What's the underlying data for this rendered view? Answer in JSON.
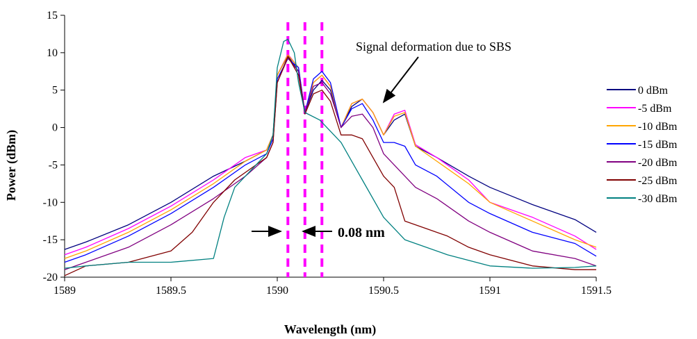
{
  "chart_data": {
    "type": "line",
    "title": "",
    "xlabel": "Wavelength (nm)",
    "ylabel": "Power (dBm)",
    "xlim": [
      1589,
      1591.5
    ],
    "ylim": [
      -20,
      15
    ],
    "x_ticks": [
      "1589",
      "1589.5",
      "1590",
      "1590.5",
      "1591",
      "1591.5"
    ],
    "y_ticks": [
      "-20",
      "-15",
      "-10",
      "-5",
      "0",
      "5",
      "10",
      "15"
    ],
    "grid": false,
    "legend": "right",
    "annotations": [
      {
        "text": "Signal deformation due to SBS",
        "arrow_to": [
          1590.48,
          1.0
        ]
      },
      {
        "text": "0.08 nm"
      }
    ],
    "markers": {
      "dashed_lines_x": [
        1590.05,
        1590.13,
        1590.21
      ],
      "color": "#ff00ff"
    },
    "series": [
      {
        "name": "0 dBm",
        "color": "#000080",
        "x": [
          1589,
          1589.1,
          1589.3,
          1589.5,
          1589.7,
          1589.85,
          1589.95,
          1589.98,
          1590.0,
          1590.05,
          1590.1,
          1590.13,
          1590.17,
          1590.21,
          1590.25,
          1590.3,
          1590.35,
          1590.4,
          1590.45,
          1590.5,
          1590.55,
          1590.6,
          1590.65,
          1590.75,
          1590.9,
          1591.0,
          1591.2,
          1591.4,
          1591.5
        ],
        "y": [
          -16.3,
          -15.3,
          -13.0,
          -10.0,
          -6.5,
          -4.5,
          -3.0,
          -1.0,
          7.0,
          9.6,
          7.5,
          2.0,
          5.0,
          6.3,
          5.0,
          0.0,
          2.8,
          3.8,
          2.0,
          -1.0,
          1.0,
          1.8,
          -2.5,
          -4.0,
          -6.5,
          -8.0,
          -10.3,
          -12.3,
          -14.0
        ]
      },
      {
        "name": "-5 dBm",
        "color": "#ff00ff",
        "x": [
          1589,
          1589.1,
          1589.3,
          1589.5,
          1589.7,
          1589.85,
          1589.95,
          1589.98,
          1590.0,
          1590.05,
          1590.1,
          1590.13,
          1590.17,
          1590.21,
          1590.25,
          1590.3,
          1590.35,
          1590.4,
          1590.45,
          1590.5,
          1590.55,
          1590.6,
          1590.65,
          1590.75,
          1590.9,
          1591.0,
          1591.2,
          1591.4,
          1591.5
        ],
        "y": [
          -17.0,
          -16.0,
          -13.5,
          -10.5,
          -7.0,
          -4.0,
          -3.0,
          -1.0,
          7.0,
          9.8,
          8.0,
          2.0,
          6.0,
          7.0,
          5.5,
          0.0,
          3.2,
          3.8,
          2.0,
          -1.0,
          1.8,
          2.3,
          -2.3,
          -4.0,
          -7.0,
          -10.0,
          -12.0,
          -14.5,
          -16.3
        ]
      },
      {
        "name": "-10 dBm",
        "color": "#ffa500",
        "x": [
          1589,
          1589.1,
          1589.3,
          1589.5,
          1589.7,
          1589.85,
          1589.95,
          1589.98,
          1590.0,
          1590.05,
          1590.1,
          1590.13,
          1590.17,
          1590.21,
          1590.25,
          1590.3,
          1590.35,
          1590.4,
          1590.45,
          1590.5,
          1590.55,
          1590.6,
          1590.65,
          1590.75,
          1590.9,
          1591.0,
          1591.2,
          1591.4,
          1591.5
        ],
        "y": [
          -17.5,
          -16.5,
          -14.0,
          -11.0,
          -7.5,
          -4.5,
          -3.0,
          -1.0,
          7.0,
          9.7,
          8.0,
          2.0,
          6.0,
          7.0,
          5.5,
          0.0,
          3.2,
          3.8,
          2.0,
          -1.0,
          1.5,
          2.0,
          -2.5,
          -4.5,
          -7.5,
          -10.0,
          -12.5,
          -15.0,
          -16.0
        ]
      },
      {
        "name": "-15 dBm",
        "color": "#0000ff",
        "x": [
          1589,
          1589.1,
          1589.3,
          1589.5,
          1589.7,
          1589.85,
          1589.95,
          1589.98,
          1590.0,
          1590.05,
          1590.1,
          1590.13,
          1590.17,
          1590.21,
          1590.25,
          1590.3,
          1590.35,
          1590.4,
          1590.45,
          1590.5,
          1590.55,
          1590.6,
          1590.65,
          1590.75,
          1590.9,
          1591.0,
          1591.2,
          1591.4,
          1591.5
        ],
        "y": [
          -18.0,
          -17.0,
          -14.5,
          -11.5,
          -8.0,
          -5.0,
          -3.5,
          -1.5,
          6.5,
          9.2,
          8.0,
          2.0,
          6.5,
          7.5,
          6.0,
          0.0,
          2.5,
          3.2,
          1.0,
          -2.0,
          -2.0,
          -2.5,
          -5.0,
          -6.5,
          -10.0,
          -11.5,
          -14.0,
          -15.5,
          -17.2
        ]
      },
      {
        "name": "-20 dBm",
        "color": "#800080",
        "x": [
          1589,
          1589.1,
          1589.3,
          1589.5,
          1589.7,
          1589.85,
          1589.95,
          1589.98,
          1590.0,
          1590.05,
          1590.1,
          1590.13,
          1590.17,
          1590.21,
          1590.25,
          1590.3,
          1590.35,
          1590.4,
          1590.45,
          1590.5,
          1590.55,
          1590.6,
          1590.65,
          1590.75,
          1590.9,
          1591.0,
          1591.2,
          1591.4,
          1591.5
        ],
        "y": [
          -19.0,
          -18.0,
          -16.0,
          -13.0,
          -9.5,
          -6.5,
          -4.0,
          -2.0,
          6.0,
          9.3,
          7.5,
          2.0,
          5.5,
          6.0,
          4.5,
          0.0,
          1.5,
          1.8,
          0.0,
          -3.5,
          -5.0,
          -6.5,
          -8.0,
          -9.5,
          -12.5,
          -14.0,
          -16.5,
          -17.5,
          -18.5
        ]
      },
      {
        "name": "-25 dBm",
        "color": "#800000",
        "x": [
          1589,
          1589.1,
          1589.3,
          1589.5,
          1589.6,
          1589.7,
          1589.8,
          1589.9,
          1589.95,
          1589.98,
          1590.0,
          1590.05,
          1590.1,
          1590.13,
          1590.17,
          1590.21,
          1590.25,
          1590.3,
          1590.35,
          1590.4,
          1590.45,
          1590.5,
          1590.55,
          1590.6,
          1590.7,
          1590.8,
          1590.9,
          1591.0,
          1591.2,
          1591.4,
          1591.5
        ],
        "y": [
          -19.8,
          -18.5,
          -18.0,
          -16.5,
          -14.0,
          -10.0,
          -7.0,
          -5.0,
          -4.0,
          -2.0,
          6.0,
          9.5,
          7.0,
          1.8,
          4.5,
          5.0,
          3.5,
          -1.0,
          -1.0,
          -1.5,
          -4.0,
          -6.5,
          -8.0,
          -12.5,
          -13.5,
          -14.5,
          -16.0,
          -17.0,
          -18.5,
          -19.0,
          -19.0
        ]
      },
      {
        "name": "-30 dBm",
        "color": "#008080",
        "x": [
          1589,
          1589.1,
          1589.3,
          1589.5,
          1589.7,
          1589.75,
          1589.8,
          1589.85,
          1589.9,
          1589.95,
          1589.98,
          1590.0,
          1590.03,
          1590.05,
          1590.08,
          1590.1,
          1590.13,
          1590.2,
          1590.3,
          1590.4,
          1590.5,
          1590.6,
          1590.8,
          1591.0,
          1591.2,
          1591.4,
          1591.5
        ],
        "y": [
          -18.8,
          -18.5,
          -18.0,
          -18.0,
          -17.5,
          -12.0,
          -8.0,
          -6.5,
          -5.0,
          -3.5,
          -1.0,
          8.0,
          11.5,
          11.8,
          10.0,
          6.0,
          2.0,
          1.0,
          -2.0,
          -7.0,
          -12.0,
          -15.0,
          -17.0,
          -18.5,
          -18.8,
          -18.7,
          -18.5
        ]
      }
    ]
  }
}
